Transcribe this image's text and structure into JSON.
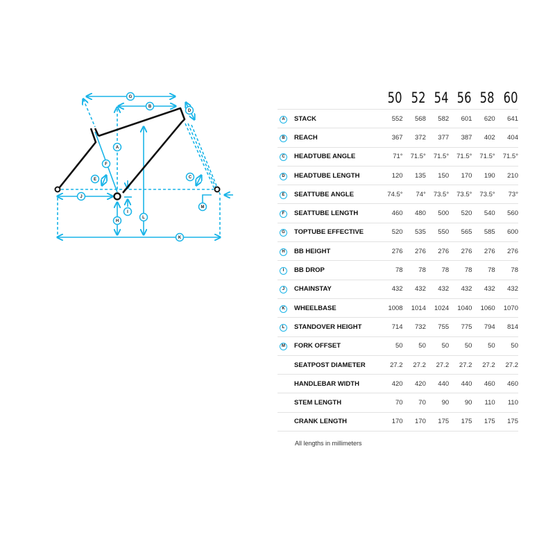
{
  "sizes": [
    "50",
    "52",
    "54",
    "56",
    "58",
    "60"
  ],
  "rows": [
    {
      "badge": "A",
      "name": "STACK",
      "values": [
        "552",
        "568",
        "582",
        "601",
        "620",
        "641"
      ]
    },
    {
      "badge": "B",
      "name": "REACH",
      "values": [
        "367",
        "372",
        "377",
        "387",
        "402",
        "404"
      ]
    },
    {
      "badge": "C",
      "name": "HEADTUBE ANGLE",
      "values": [
        "71°",
        "71.5°",
        "71.5°",
        "71.5°",
        "71.5°",
        "71.5°"
      ]
    },
    {
      "badge": "D",
      "name": "HEADTUBE LENGTH",
      "values": [
        "120",
        "135",
        "150",
        "170",
        "190",
        "210"
      ]
    },
    {
      "badge": "E",
      "name": "SEATTUBE ANGLE",
      "values": [
        "74.5°",
        "74°",
        "73.5°",
        "73.5°",
        "73.5°",
        "73°"
      ]
    },
    {
      "badge": "F",
      "name": "SEATTUBE LENGTH",
      "values": [
        "460",
        "480",
        "500",
        "520",
        "540",
        "560"
      ]
    },
    {
      "badge": "G",
      "name": "TOPTUBE EFFECTIVE",
      "values": [
        "520",
        "535",
        "550",
        "565",
        "585",
        "600"
      ]
    },
    {
      "badge": "H",
      "name": "BB HEIGHT",
      "values": [
        "276",
        "276",
        "276",
        "276",
        "276",
        "276"
      ]
    },
    {
      "badge": "I",
      "name": "BB DROP",
      "values": [
        "78",
        "78",
        "78",
        "78",
        "78",
        "78"
      ]
    },
    {
      "badge": "J",
      "name": "CHAINSTAY",
      "values": [
        "432",
        "432",
        "432",
        "432",
        "432",
        "432"
      ]
    },
    {
      "badge": "K",
      "name": "WHEELBASE",
      "values": [
        "1008",
        "1014",
        "1024",
        "1040",
        "1060",
        "1070"
      ]
    },
    {
      "badge": "L",
      "name": "STANDOVER HEIGHT",
      "values": [
        "714",
        "732",
        "755",
        "775",
        "794",
        "814"
      ]
    },
    {
      "badge": "M",
      "name": "FORK OFFSET",
      "values": [
        "50",
        "50",
        "50",
        "50",
        "50",
        "50"
      ]
    },
    {
      "badge": "",
      "name": "SEATPOST DIAMETER",
      "values": [
        "27.2",
        "27.2",
        "27.2",
        "27.2",
        "27.2",
        "27.2"
      ]
    },
    {
      "badge": "",
      "name": "HANDLEBAR WIDTH",
      "values": [
        "420",
        "420",
        "440",
        "440",
        "460",
        "460"
      ]
    },
    {
      "badge": "",
      "name": "STEM LENGTH",
      "values": [
        "70",
        "70",
        "90",
        "90",
        "110",
        "110"
      ]
    },
    {
      "badge": "",
      "name": "CRANK LENGTH",
      "values": [
        "170",
        "170",
        "175",
        "175",
        "175",
        "175"
      ]
    }
  ],
  "note": "All lengths in millimeters",
  "colors": {
    "accent": "#19b4e8",
    "frame": "#111111"
  },
  "diagram_labels": [
    "A",
    "B",
    "C",
    "D",
    "E",
    "F",
    "G",
    "H",
    "I",
    "J",
    "K",
    "L",
    "M"
  ]
}
